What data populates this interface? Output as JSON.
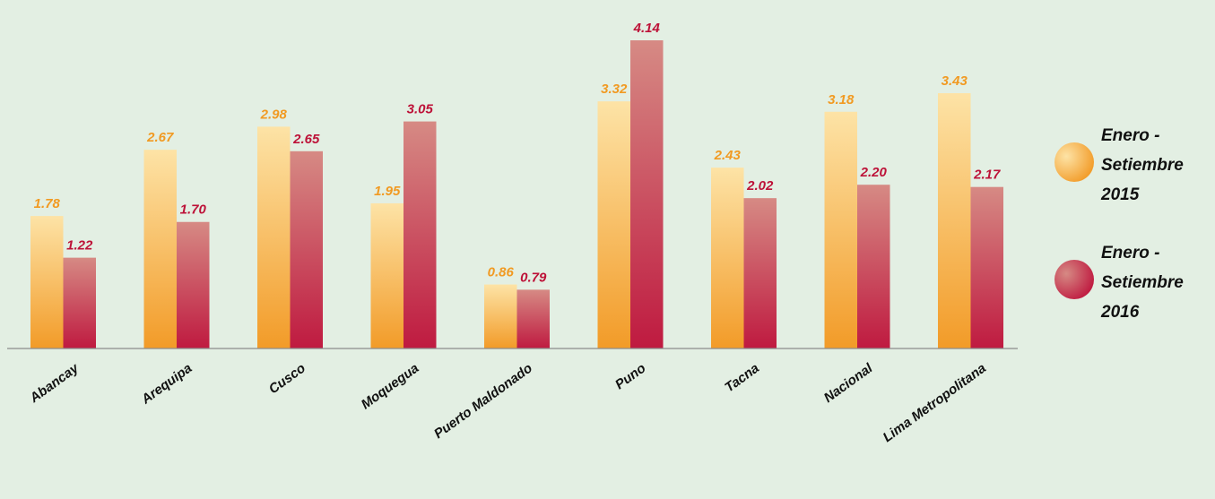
{
  "chart_data": {
    "type": "bar",
    "title": "",
    "xlabel": "",
    "ylabel": "",
    "ylim": [
      0,
      4.14
    ],
    "grid": false,
    "legend_position": "right",
    "categories": [
      "Abancay",
      "Arequipa",
      "Cusco",
      "Moquegua",
      "Puerto Maldonado",
      "Puno",
      "Tacna",
      "Nacional",
      "Lima Metropolitana"
    ],
    "series": [
      {
        "name": "Enero - Setiembre 2015",
        "legend_lines": [
          "Enero -",
          "Setiembre",
          "2015"
        ],
        "values": [
          1.78,
          2.67,
          2.98,
          1.95,
          0.86,
          3.32,
          2.43,
          3.18,
          3.43
        ],
        "labels": [
          "1.78",
          "2.67",
          "2.98",
          "1.95",
          "0.86",
          "3.32",
          "2.43",
          "3.18",
          "3.43"
        ],
        "color_top": "#fde3a6",
        "color_bottom": "#f29b28",
        "label_color": "#f19a22"
      },
      {
        "name": "Enero - Setiembre 2016",
        "legend_lines": [
          "Enero -",
          "Setiembre",
          "2016"
        ],
        "values": [
          1.22,
          1.7,
          2.65,
          3.05,
          0.79,
          4.14,
          2.02,
          2.2,
          2.17
        ],
        "labels": [
          "1.22",
          "1.70",
          "2.65",
          "3.05",
          "0.79",
          "4.14",
          "2.02",
          "2.20",
          "2.17"
        ],
        "color_top": "#d68a84",
        "color_bottom": "#bf1a40",
        "label_color": "#bd1238"
      }
    ]
  },
  "colors": {
    "background": "#e3efe3",
    "axis": "#8c8c8c",
    "category_text": "#111111"
  }
}
